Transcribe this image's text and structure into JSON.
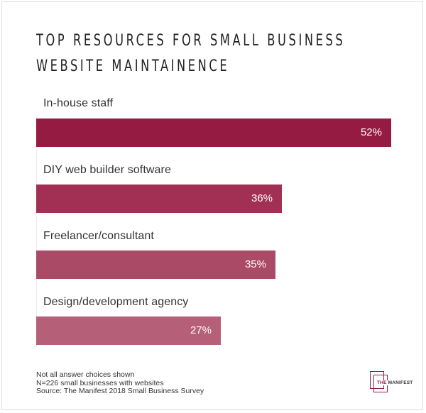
{
  "chart_data": {
    "type": "bar",
    "orientation": "horizontal",
    "title": "TOP RESOURCES FOR SMALL BUSINESS WEBSITE MAINTAINENCE",
    "title_lines": [
      "TOP RESOURCES FOR SMALL BUSINESS",
      "WEBSITE MAINTAINENCE"
    ],
    "categories": [
      "In-house staff",
      "DIY web builder software",
      "Freelancer/consultant",
      "Design/development agency"
    ],
    "values": [
      52,
      36,
      35,
      27
    ],
    "value_labels": [
      "52%",
      "36%",
      "35%",
      "27%"
    ],
    "unit": "%",
    "xlabel": "",
    "ylabel": "",
    "xlim": [
      0,
      52
    ],
    "grid": false,
    "legend": null,
    "colors": [
      "#951b42",
      "#a13054",
      "#aa4a66",
      "#b55f78"
    ]
  },
  "rows": [
    {
      "label": "In-house staff",
      "value_label": "52%",
      "value": 52,
      "color": "#951b42"
    },
    {
      "label": "DIY web builder software",
      "value_label": "36%",
      "value": 36,
      "color": "#a13054"
    },
    {
      "label": "Freelancer/consultant",
      "value_label": "35%",
      "value": 35,
      "color": "#aa4a66"
    },
    {
      "label": "Design/development agency",
      "value_label": "27%",
      "value": 27,
      "color": "#b55f78"
    }
  ],
  "notes": {
    "line1": "Not all answer choices shown",
    "line2": "N=226 small businesses with websites",
    "line3": "Source: The Manifest 2018 Small Business Survey"
  },
  "logo": {
    "the": "THE",
    "manifest": "MANIFEST",
    "accent_color": "#951b42"
  }
}
